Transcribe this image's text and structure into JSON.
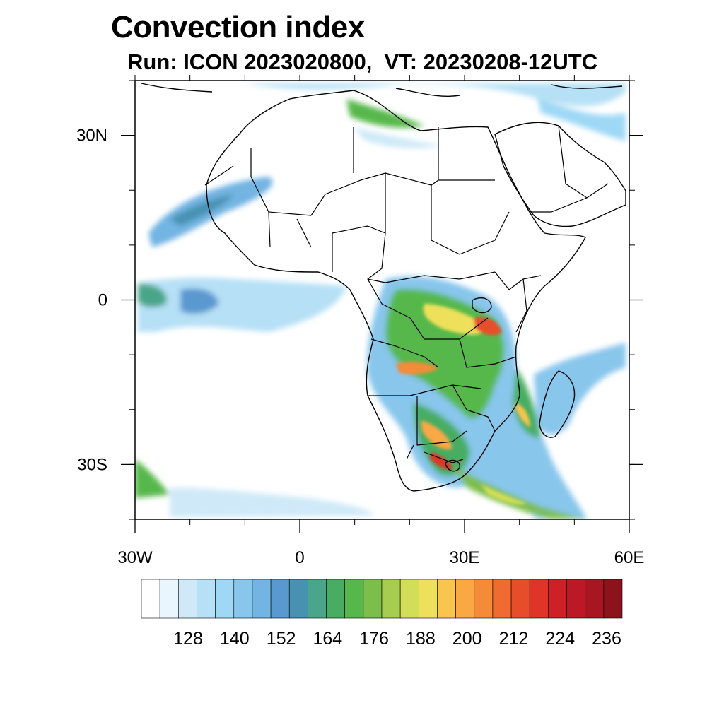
{
  "header": {
    "title": "Convection index",
    "subtitle": "Run: ICON 2023020800,  VT: 20230208-12UTC"
  },
  "map": {
    "lon_range": [
      -30,
      60
    ],
    "lat_range": [
      -40,
      40
    ],
    "lon_ticks": [
      {
        "value": -30,
        "label": "30W"
      },
      {
        "value": 0,
        "label": "0"
      },
      {
        "value": 30,
        "label": "30E"
      },
      {
        "value": 60,
        "label": "60E"
      }
    ],
    "lat_ticks": [
      {
        "value": 30,
        "label": "30N"
      },
      {
        "value": 0,
        "label": "0"
      },
      {
        "value": -30,
        "label": "30S"
      }
    ],
    "minor_tick_step_deg": 10
  },
  "colorbar": {
    "labels": [
      "128",
      "140",
      "152",
      "164",
      "176",
      "188",
      "200",
      "212",
      "224",
      "236"
    ],
    "colors": [
      "#ffffff",
      "#eaf6fd",
      "#cfe9f8",
      "#b6e0f6",
      "#9ed8f5",
      "#88c6ec",
      "#72b4e2",
      "#5a98d0",
      "#4792b3",
      "#4aa58a",
      "#47ad62",
      "#56b84c",
      "#7cbd4c",
      "#a6cc50",
      "#d2de58",
      "#eee05a",
      "#f9c54e",
      "#f9a844",
      "#f48b38",
      "#ef6b2f",
      "#e84d2a",
      "#df3428",
      "#cf2027",
      "#bd1825",
      "#a81622",
      "#8c121b"
    ]
  }
}
